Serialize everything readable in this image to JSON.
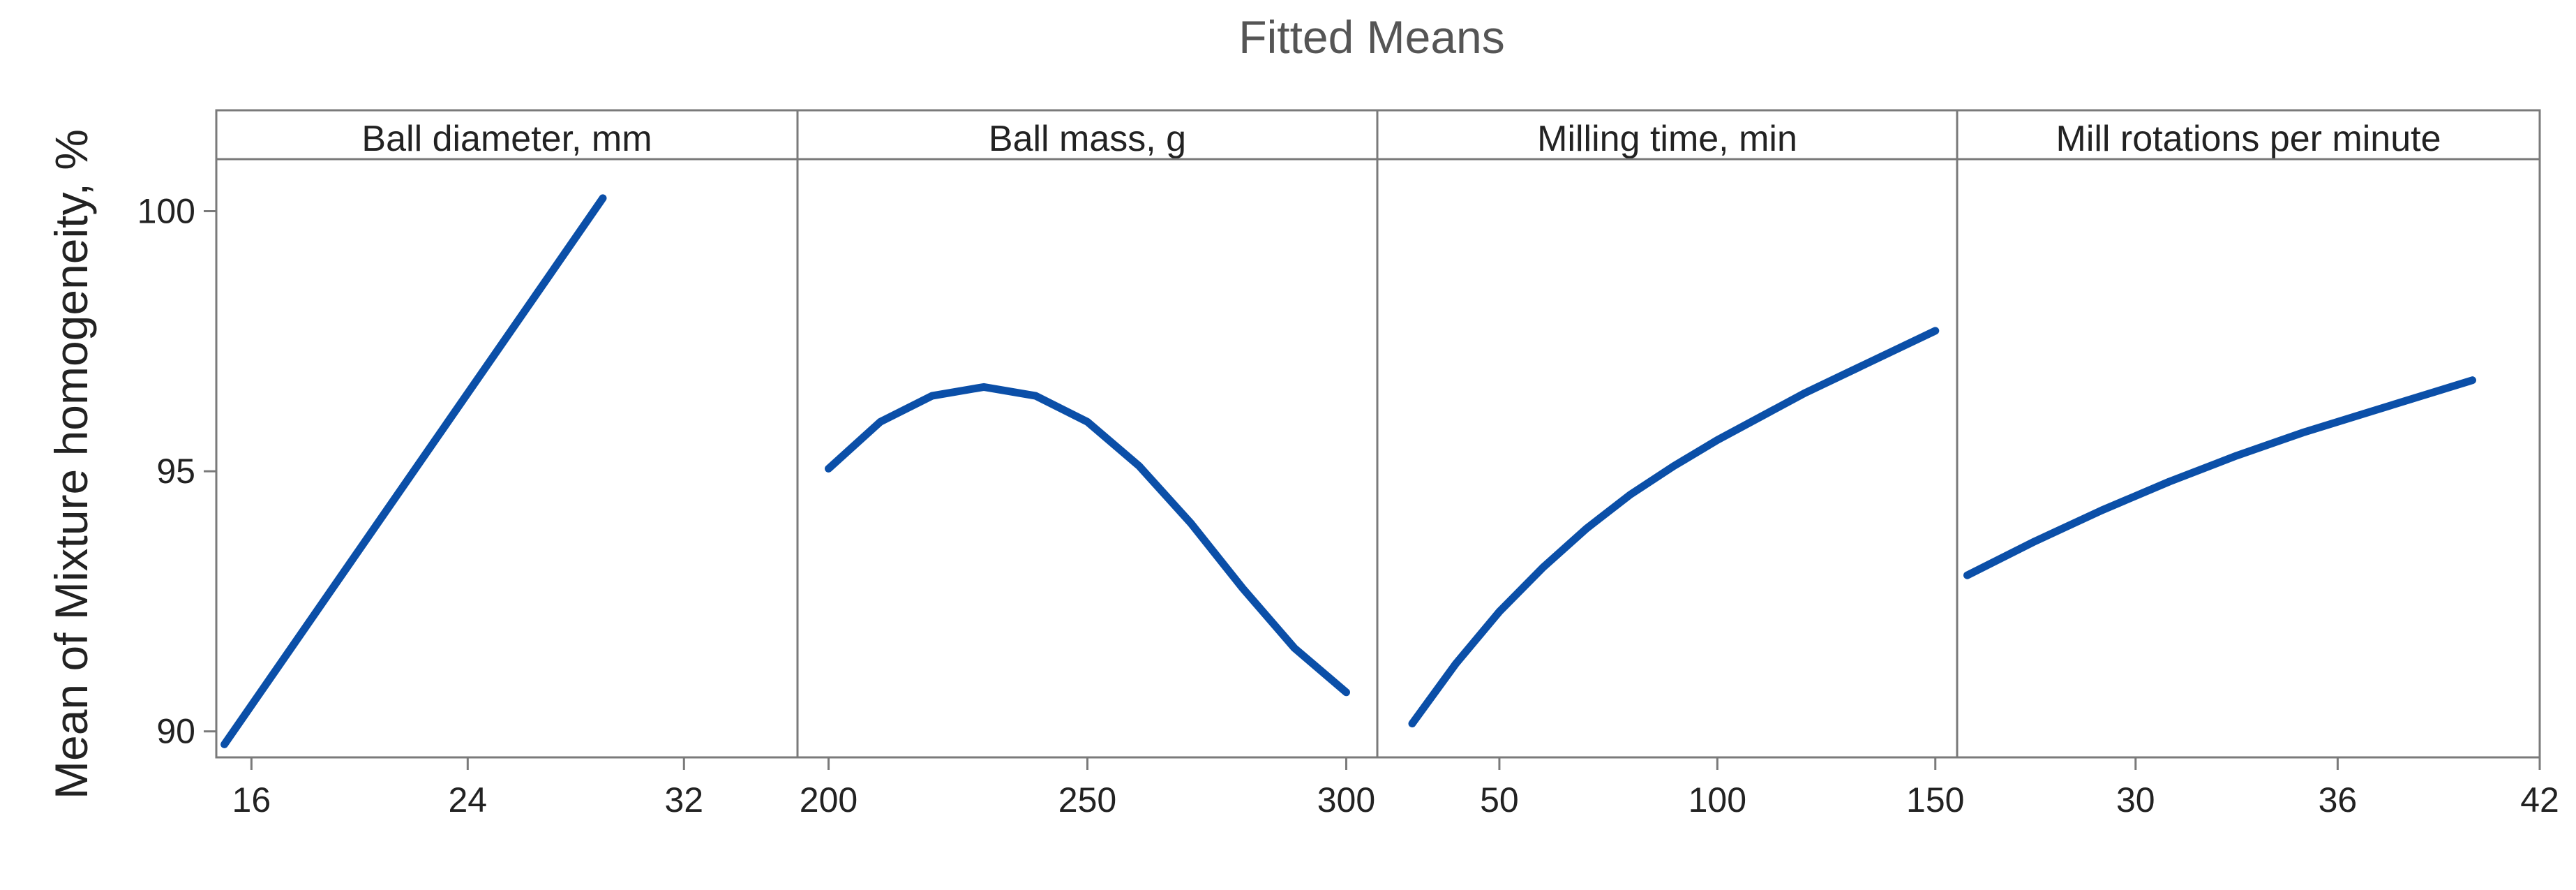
{
  "chart_data": {
    "type": "line",
    "title": "Fitted Means",
    "ylabel": "Mean of Mixture homogeneity, %",
    "ylim": [
      89.5,
      101
    ],
    "yticks": [
      90,
      95,
      100
    ],
    "series_color": "#0b4fa8",
    "grid": false,
    "panels": [
      {
        "label": "Ball diameter, mm",
        "xlim": [
          14.7,
          36.2
        ],
        "xticks": [
          16,
          24,
          32
        ],
        "series": [
          {
            "x": [
              15,
              17,
              19,
              21,
              23,
              25,
              27,
              29
            ],
            "y": [
              89.75,
              91.25,
              92.75,
              94.25,
              95.75,
              97.25,
              98.75,
              100.25
            ]
          }
        ]
      },
      {
        "label": "Ball mass, g",
        "xlim": [
          194,
          306
        ],
        "xticks": [
          200,
          250,
          300
        ],
        "series": [
          {
            "x": [
              200,
              210,
              220,
              230,
              240,
              250,
              260,
              270,
              280,
              290,
              300
            ],
            "y": [
              95.05,
              95.95,
              96.45,
              96.62,
              96.45,
              95.95,
              95.1,
              94.0,
              92.75,
              91.6,
              90.75
            ]
          }
        ]
      },
      {
        "label": "Milling time, min",
        "xlim": [
          22,
          155
        ],
        "xticks": [
          50,
          100,
          150
        ],
        "series": [
          {
            "x": [
              30,
              40,
              50,
              60,
              70,
              80,
              90,
              100,
              110,
              120,
              130,
              140,
              150
            ],
            "y": [
              90.15,
              91.3,
              92.3,
              93.15,
              93.9,
              94.55,
              95.1,
              95.6,
              96.05,
              96.5,
              96.9,
              97.3,
              97.7
            ]
          }
        ]
      },
      {
        "label": "Mill rotations per minute",
        "xlim": [
          24.7,
          42
        ],
        "xticks": [
          30,
          36,
          42
        ],
        "series": [
          {
            "x": [
              25,
              27,
              29,
              31,
              33,
              35,
              37,
              39,
              40
            ],
            "y": [
              93.0,
              93.65,
              94.25,
              94.8,
              95.3,
              95.75,
              96.15,
              96.55,
              96.75
            ]
          }
        ]
      }
    ]
  }
}
